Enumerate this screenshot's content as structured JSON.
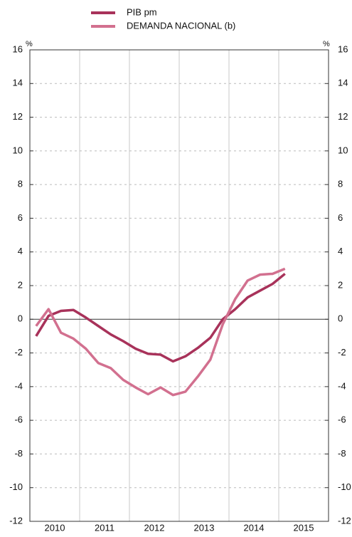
{
  "chart_data": {
    "type": "line",
    "categories": [
      "2010",
      null,
      null,
      null,
      "2011",
      null,
      null,
      null,
      "2012",
      null,
      null,
      null,
      "2013",
      null,
      null,
      null,
      "2014",
      null,
      null,
      null,
      "2015"
    ],
    "series": [
      {
        "name": "PIB pm",
        "color": "#a8325a",
        "values": [
          -1.0,
          0.2,
          0.5,
          0.55,
          0.1,
          -0.4,
          -0.9,
          -1.3,
          -1.75,
          -2.05,
          -2.1,
          -2.5,
          -2.2,
          -1.7,
          -1.1,
          0.0,
          0.6,
          1.3,
          1.7,
          2.1,
          2.7
        ]
      },
      {
        "name": "DEMANDA NACIONAL (b)",
        "color": "#d2708f",
        "values": [
          -0.4,
          0.6,
          -0.8,
          -1.15,
          -1.75,
          -2.6,
          -2.9,
          -3.6,
          -4.05,
          -4.45,
          -4.05,
          -4.5,
          -4.3,
          -3.4,
          -2.4,
          -0.3,
          1.2,
          2.3,
          2.65,
          2.7,
          3.0
        ]
      }
    ],
    "y_unit": "%",
    "ylim": [
      -12,
      16
    ],
    "yticks": [
      -12,
      -10,
      -8,
      -6,
      -4,
      -2,
      0,
      2,
      4,
      6,
      8,
      10,
      12,
      14,
      16
    ],
    "grid": true
  }
}
